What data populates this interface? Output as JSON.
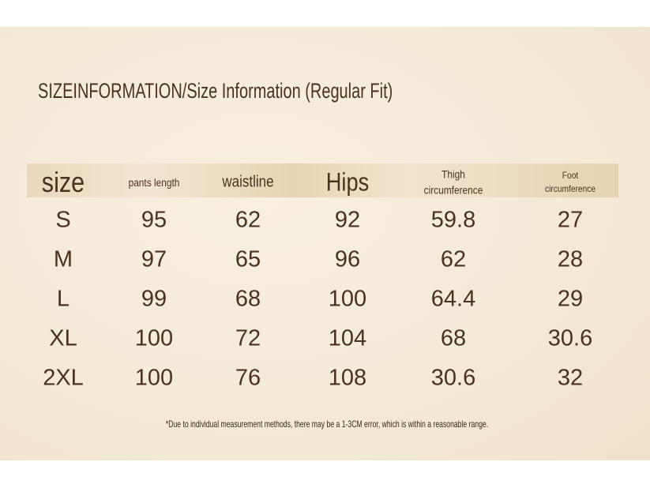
{
  "title": "SIZEINFORMATION/Size Information (Regular Fit)",
  "table": {
    "header": [
      "size",
      "pants length",
      "waistline",
      "Hips",
      "Thigh circumference",
      "Foot circumference"
    ],
    "rows": [
      [
        "S",
        95,
        62,
        92,
        59.8,
        27
      ],
      [
        "M",
        97,
        65,
        96,
        62,
        28
      ],
      [
        "L",
        99,
        68,
        100,
        64.4,
        29
      ],
      [
        "XL",
        100,
        72,
        104,
        68,
        30.6
      ],
      [
        "2XL",
        100,
        76,
        108,
        30.6,
        32
      ]
    ]
  },
  "footnote": "*Due to individual measurement methods, there may be a 1-3CM error, which is within a reasonable range."
}
